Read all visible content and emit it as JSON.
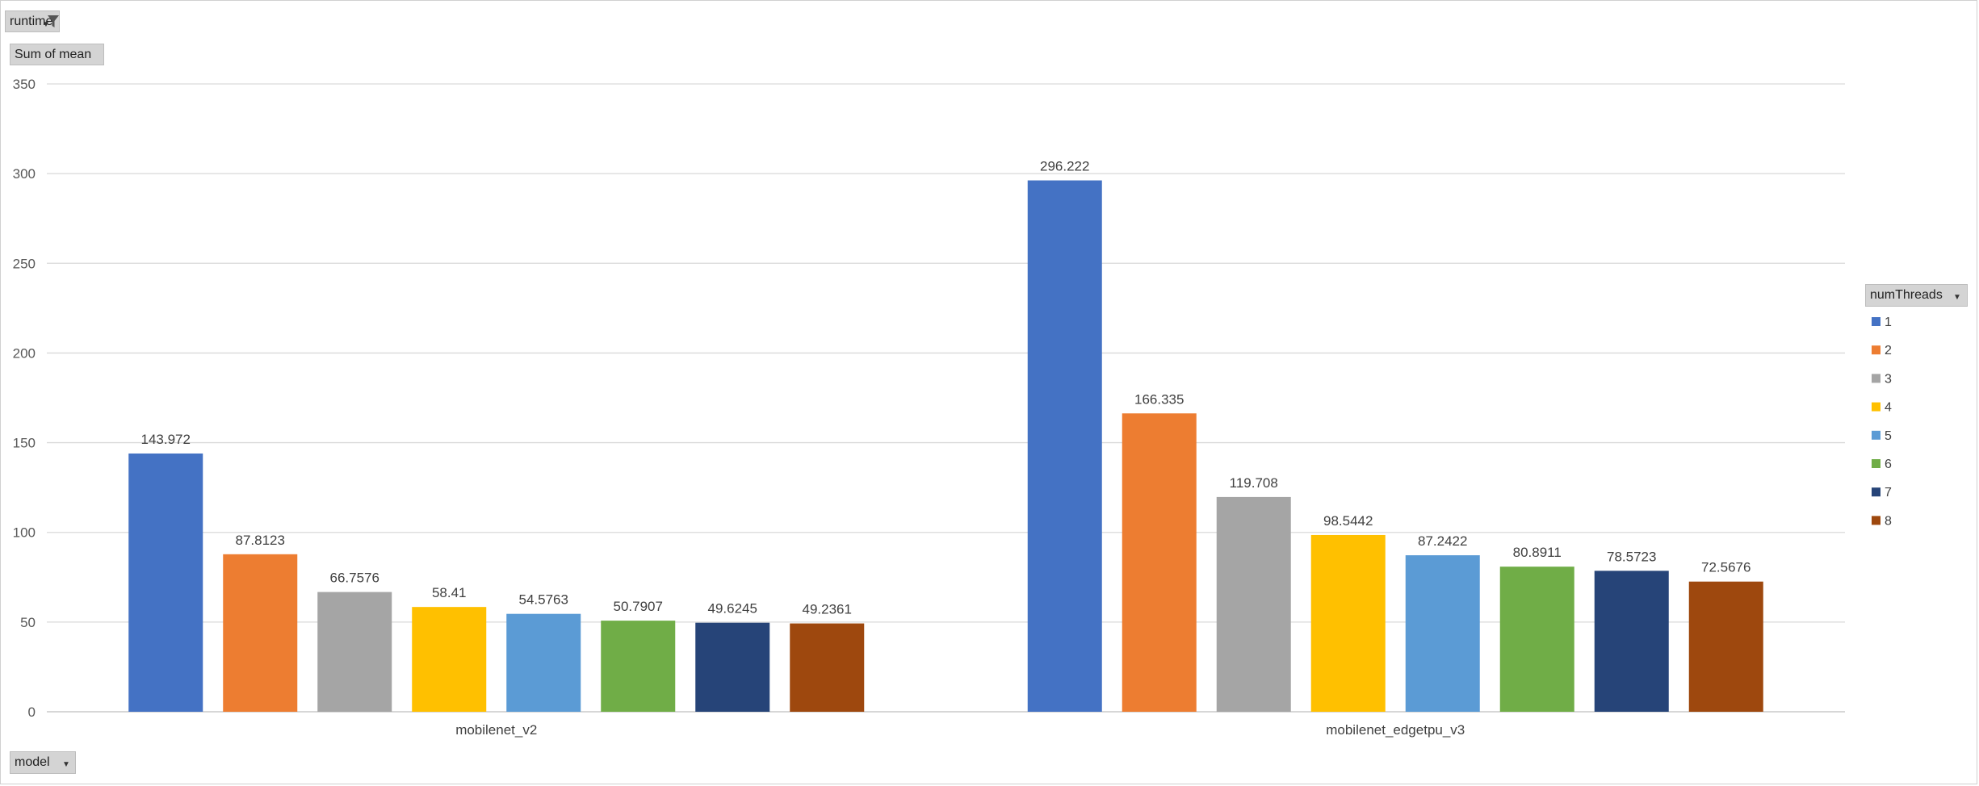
{
  "filters": {
    "runtime": {
      "label": "runtime",
      "icon": "filter-icon"
    },
    "values_field": {
      "label": "Sum of mean"
    },
    "axis_field": {
      "label": "model",
      "icon": "chevron-down-icon"
    },
    "legend_field": {
      "label": "numThreads",
      "icon": "chevron-down-icon"
    }
  },
  "chart_data": {
    "type": "bar",
    "categories": [
      "mobilenet_v2",
      "mobilenet_edgetpu_v3"
    ],
    "series": [
      {
        "name": "1",
        "color": "#4472C4",
        "values": [
          143.972,
          296.222
        ],
        "labels": [
          "143.972",
          "296.222"
        ]
      },
      {
        "name": "2",
        "color": "#ED7D31",
        "values": [
          87.8123,
          166.335
        ],
        "labels": [
          "87.8123",
          "166.335"
        ]
      },
      {
        "name": "3",
        "color": "#A5A5A5",
        "values": [
          66.7576,
          119.708
        ],
        "labels": [
          "66.7576",
          "119.708"
        ]
      },
      {
        "name": "4",
        "color": "#FFC000",
        "values": [
          58.41,
          98.5442
        ],
        "labels": [
          "58.41",
          "98.5442"
        ]
      },
      {
        "name": "5",
        "color": "#5B9BD5",
        "values": [
          54.5763,
          87.2422
        ],
        "labels": [
          "54.5763",
          "87.2422"
        ]
      },
      {
        "name": "6",
        "color": "#70AD47",
        "values": [
          50.7907,
          80.8911
        ],
        "labels": [
          "50.7907",
          "80.8911"
        ]
      },
      {
        "name": "7",
        "color": "#264478",
        "values": [
          49.6245,
          78.5723
        ],
        "labels": [
          "49.6245",
          "78.5723"
        ]
      },
      {
        "name": "8",
        "color": "#9E480E",
        "values": [
          49.2361,
          72.5676
        ],
        "labels": [
          "49.2361",
          "72.5676"
        ]
      }
    ],
    "ylim": [
      0,
      350
    ],
    "yticks": [
      0,
      50,
      100,
      150,
      200,
      250,
      300,
      350
    ],
    "grid": true,
    "legend_position": "right"
  }
}
